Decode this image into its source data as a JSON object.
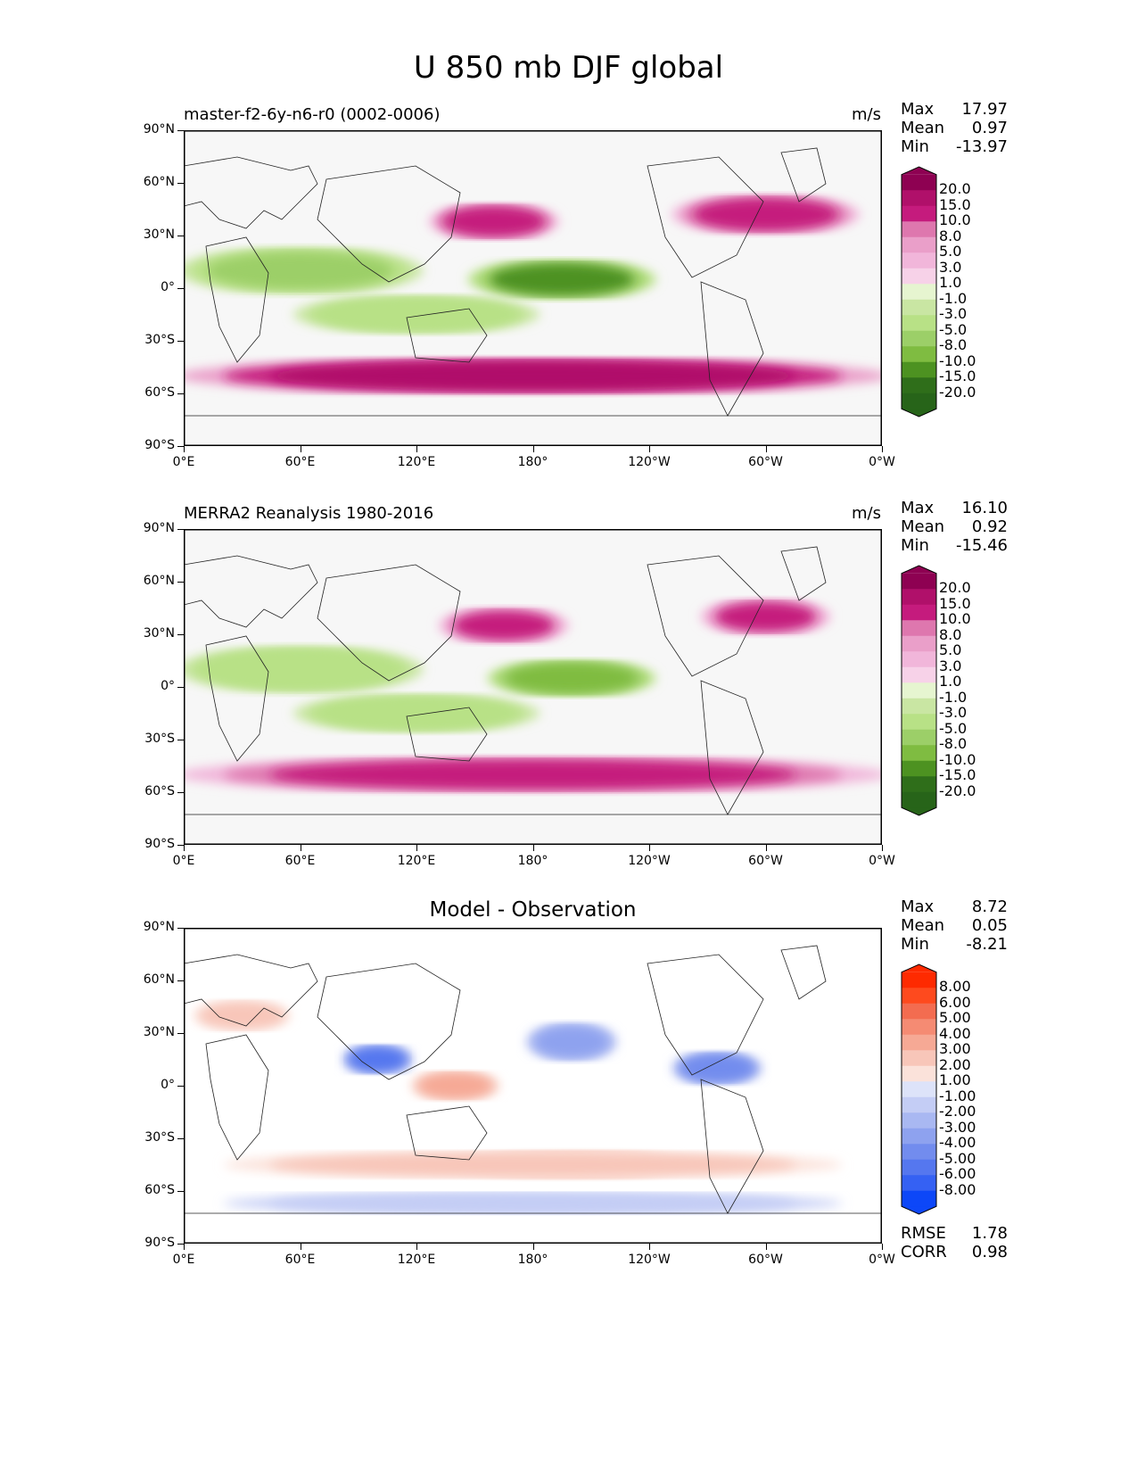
{
  "title": "U 850 mb DJF global",
  "lat_ticks": [
    "90°N",
    "60°N",
    "30°N",
    "0°",
    "30°S",
    "60°S",
    "90°S"
  ],
  "lon_ticks": [
    "0°E",
    "60°E",
    "120°E",
    "180°",
    "120°W",
    "60°W",
    "0°W"
  ],
  "stat_labels": {
    "max": "Max",
    "mean": "Mean",
    "min": "Min",
    "rmse": "RMSE",
    "corr": "CORR"
  },
  "panels": [
    {
      "title": "master-f2-6y-n6-r0 (0002-0006)",
      "units": "m/s",
      "max": "17.97",
      "mean": "0.97",
      "min": "-13.97",
      "colorbar_labels": [
        "20.0",
        "15.0",
        "10.0",
        "8.0",
        "5.0",
        "3.0",
        "1.0",
        "-1.0",
        "-3.0",
        "-5.0",
        "-8.0",
        "-10.0",
        "-15.0",
        "-20.0"
      ]
    },
    {
      "title": "MERRA2 Reanalysis 1980-2016",
      "units": "m/s",
      "max": "16.10",
      "mean": "0.92",
      "min": "-15.46",
      "colorbar_labels": [
        "20.0",
        "15.0",
        "10.0",
        "8.0",
        "5.0",
        "3.0",
        "1.0",
        "-1.0",
        "-3.0",
        "-5.0",
        "-8.0",
        "-10.0",
        "-15.0",
        "-20.0"
      ]
    },
    {
      "title": "Model - Observation",
      "max": "8.72",
      "mean": "0.05",
      "min": "-8.21",
      "rmse": "1.78",
      "corr": "0.98",
      "colorbar_labels": [
        "8.00",
        "6.00",
        "5.00",
        "4.00",
        "3.00",
        "2.00",
        "1.00",
        "-1.00",
        "-2.00",
        "-3.00",
        "-4.00",
        "-5.00",
        "-6.00",
        "-8.00"
      ]
    }
  ],
  "colors": {
    "piyg": [
      "#8e0152",
      "#b0106a",
      "#c51b7d",
      "#d5489a",
      "#de77ae",
      "#ea9fc9",
      "#f1b6da",
      "#f7d2e8",
      "#f7f7f7",
      "#e6f5d0",
      "#c9e6a3",
      "#b8e186",
      "#9ccf68",
      "#7fbc41",
      "#5fa132",
      "#4d9221",
      "#2f6e1a",
      "#276419"
    ],
    "diff": [
      "#fe2a00",
      "#fe4a1e",
      "#f36c50",
      "#f58b73",
      "#f6a995",
      "#f8c6b9",
      "#fbe2da",
      "#ffffff",
      "#dde3f9",
      "#c4cdf5",
      "#a9b8f2",
      "#8ea2ef",
      "#728cee",
      "#5577ef",
      "#3561f3",
      "#0d47f8"
    ]
  },
  "chart_data": [
    {
      "type": "heatmap",
      "title": "master-f2-6y-n6-r0 (0002-0006)",
      "units": "m/s",
      "x_ticks": [
        "0°E",
        "60°E",
        "120°E",
        "180°",
        "120°W",
        "60°W",
        "0°W"
      ],
      "y_ticks": [
        "90°N",
        "60°N",
        "30°N",
        "0°",
        "30°S",
        "60°S",
        "90°S"
      ],
      "xlim": [
        0,
        360
      ],
      "ylim": [
        -90,
        90
      ],
      "levels": [
        -20,
        -15,
        -10,
        -8,
        -5,
        -3,
        -1,
        1,
        3,
        5,
        8,
        10,
        15,
        20
      ],
      "stats": {
        "max": 17.97,
        "mean": 0.97,
        "min": -13.97
      },
      "features": [
        {
          "lon_center": 180,
          "lat_center": -50,
          "lon_width": 360,
          "lat_width": 14,
          "value": 16
        },
        {
          "lon_center": 160,
          "lat_center": 38,
          "lon_width": 60,
          "lat_width": 14,
          "value": 12
        },
        {
          "lon_center": 300,
          "lat_center": 42,
          "lon_width": 90,
          "lat_width": 16,
          "value": 12
        },
        {
          "lon_center": 195,
          "lat_center": 5,
          "lon_width": 90,
          "lat_width": 16,
          "value": -11
        },
        {
          "lon_center": 60,
          "lat_center": 10,
          "lon_width": 120,
          "lat_width": 20,
          "value": -6
        },
        {
          "lon_center": 120,
          "lat_center": -15,
          "lon_width": 120,
          "lat_width": 15,
          "value": -5
        }
      ]
    },
    {
      "type": "heatmap",
      "title": "MERRA2 Reanalysis 1980-2016",
      "units": "m/s",
      "x_ticks": [
        "0°E",
        "60°E",
        "120°E",
        "180°",
        "120°W",
        "60°W",
        "0°W"
      ],
      "y_ticks": [
        "90°N",
        "60°N",
        "30°N",
        "0°",
        "30°S",
        "60°S",
        "90°S"
      ],
      "xlim": [
        0,
        360
      ],
      "ylim": [
        -90,
        90
      ],
      "levels": [
        -20,
        -15,
        -10,
        -8,
        -5,
        -3,
        -1,
        1,
        3,
        5,
        8,
        10,
        15,
        20
      ],
      "stats": {
        "max": 16.1,
        "mean": 0.92,
        "min": -15.46
      },
      "features": [
        {
          "lon_center": 180,
          "lat_center": -50,
          "lon_width": 360,
          "lat_width": 14,
          "value": 14
        },
        {
          "lon_center": 165,
          "lat_center": 35,
          "lon_width": 60,
          "lat_width": 14,
          "value": 11
        },
        {
          "lon_center": 300,
          "lat_center": 40,
          "lon_width": 60,
          "lat_width": 14,
          "value": 11
        },
        {
          "lon_center": 200,
          "lat_center": 5,
          "lon_width": 80,
          "lat_width": 14,
          "value": -10
        },
        {
          "lon_center": 60,
          "lat_center": 10,
          "lon_width": 120,
          "lat_width": 20,
          "value": -5
        },
        {
          "lon_center": 120,
          "lat_center": -15,
          "lon_width": 120,
          "lat_width": 15,
          "value": -5
        }
      ]
    },
    {
      "type": "heatmap",
      "title": "Model - Observation",
      "x_ticks": [
        "0°E",
        "60°E",
        "120°E",
        "180°",
        "120°W",
        "60°W",
        "0°W"
      ],
      "y_ticks": [
        "90°N",
        "60°N",
        "30°N",
        "0°",
        "30°S",
        "60°S",
        "90°S"
      ],
      "xlim": [
        0,
        360
      ],
      "ylim": [
        -90,
        90
      ],
      "levels": [
        -8,
        -6,
        -5,
        -4,
        -3,
        -2,
        -1,
        1,
        2,
        3,
        4,
        5,
        6,
        8
      ],
      "stats": {
        "max": 8.72,
        "mean": 0.05,
        "min": -8.21,
        "rmse": 1.78,
        "corr": 0.98
      },
      "features": [
        {
          "lon_center": 200,
          "lat_center": -45,
          "lon_width": 110,
          "lat_width": 10,
          "value": 4
        },
        {
          "lon_center": 180,
          "lat_center": -45,
          "lon_width": 360,
          "lat_width": 10,
          "value": 2
        },
        {
          "lon_center": 100,
          "lat_center": 15,
          "lon_width": 30,
          "lat_width": 10,
          "value": -6
        },
        {
          "lon_center": 200,
          "lat_center": 25,
          "lon_width": 40,
          "lat_width": 15,
          "value": -4
        },
        {
          "lon_center": 275,
          "lat_center": 10,
          "lon_width": 40,
          "lat_width": 12,
          "value": -5
        },
        {
          "lon_center": 140,
          "lat_center": 0,
          "lon_width": 40,
          "lat_width": 10,
          "value": 3
        },
        {
          "lon_center": 180,
          "lat_center": -67,
          "lon_width": 360,
          "lat_width": 6,
          "value": -2
        },
        {
          "lon_center": 30,
          "lat_center": 40,
          "lon_width": 50,
          "lat_width": 12,
          "value": 2
        }
      ]
    }
  ]
}
